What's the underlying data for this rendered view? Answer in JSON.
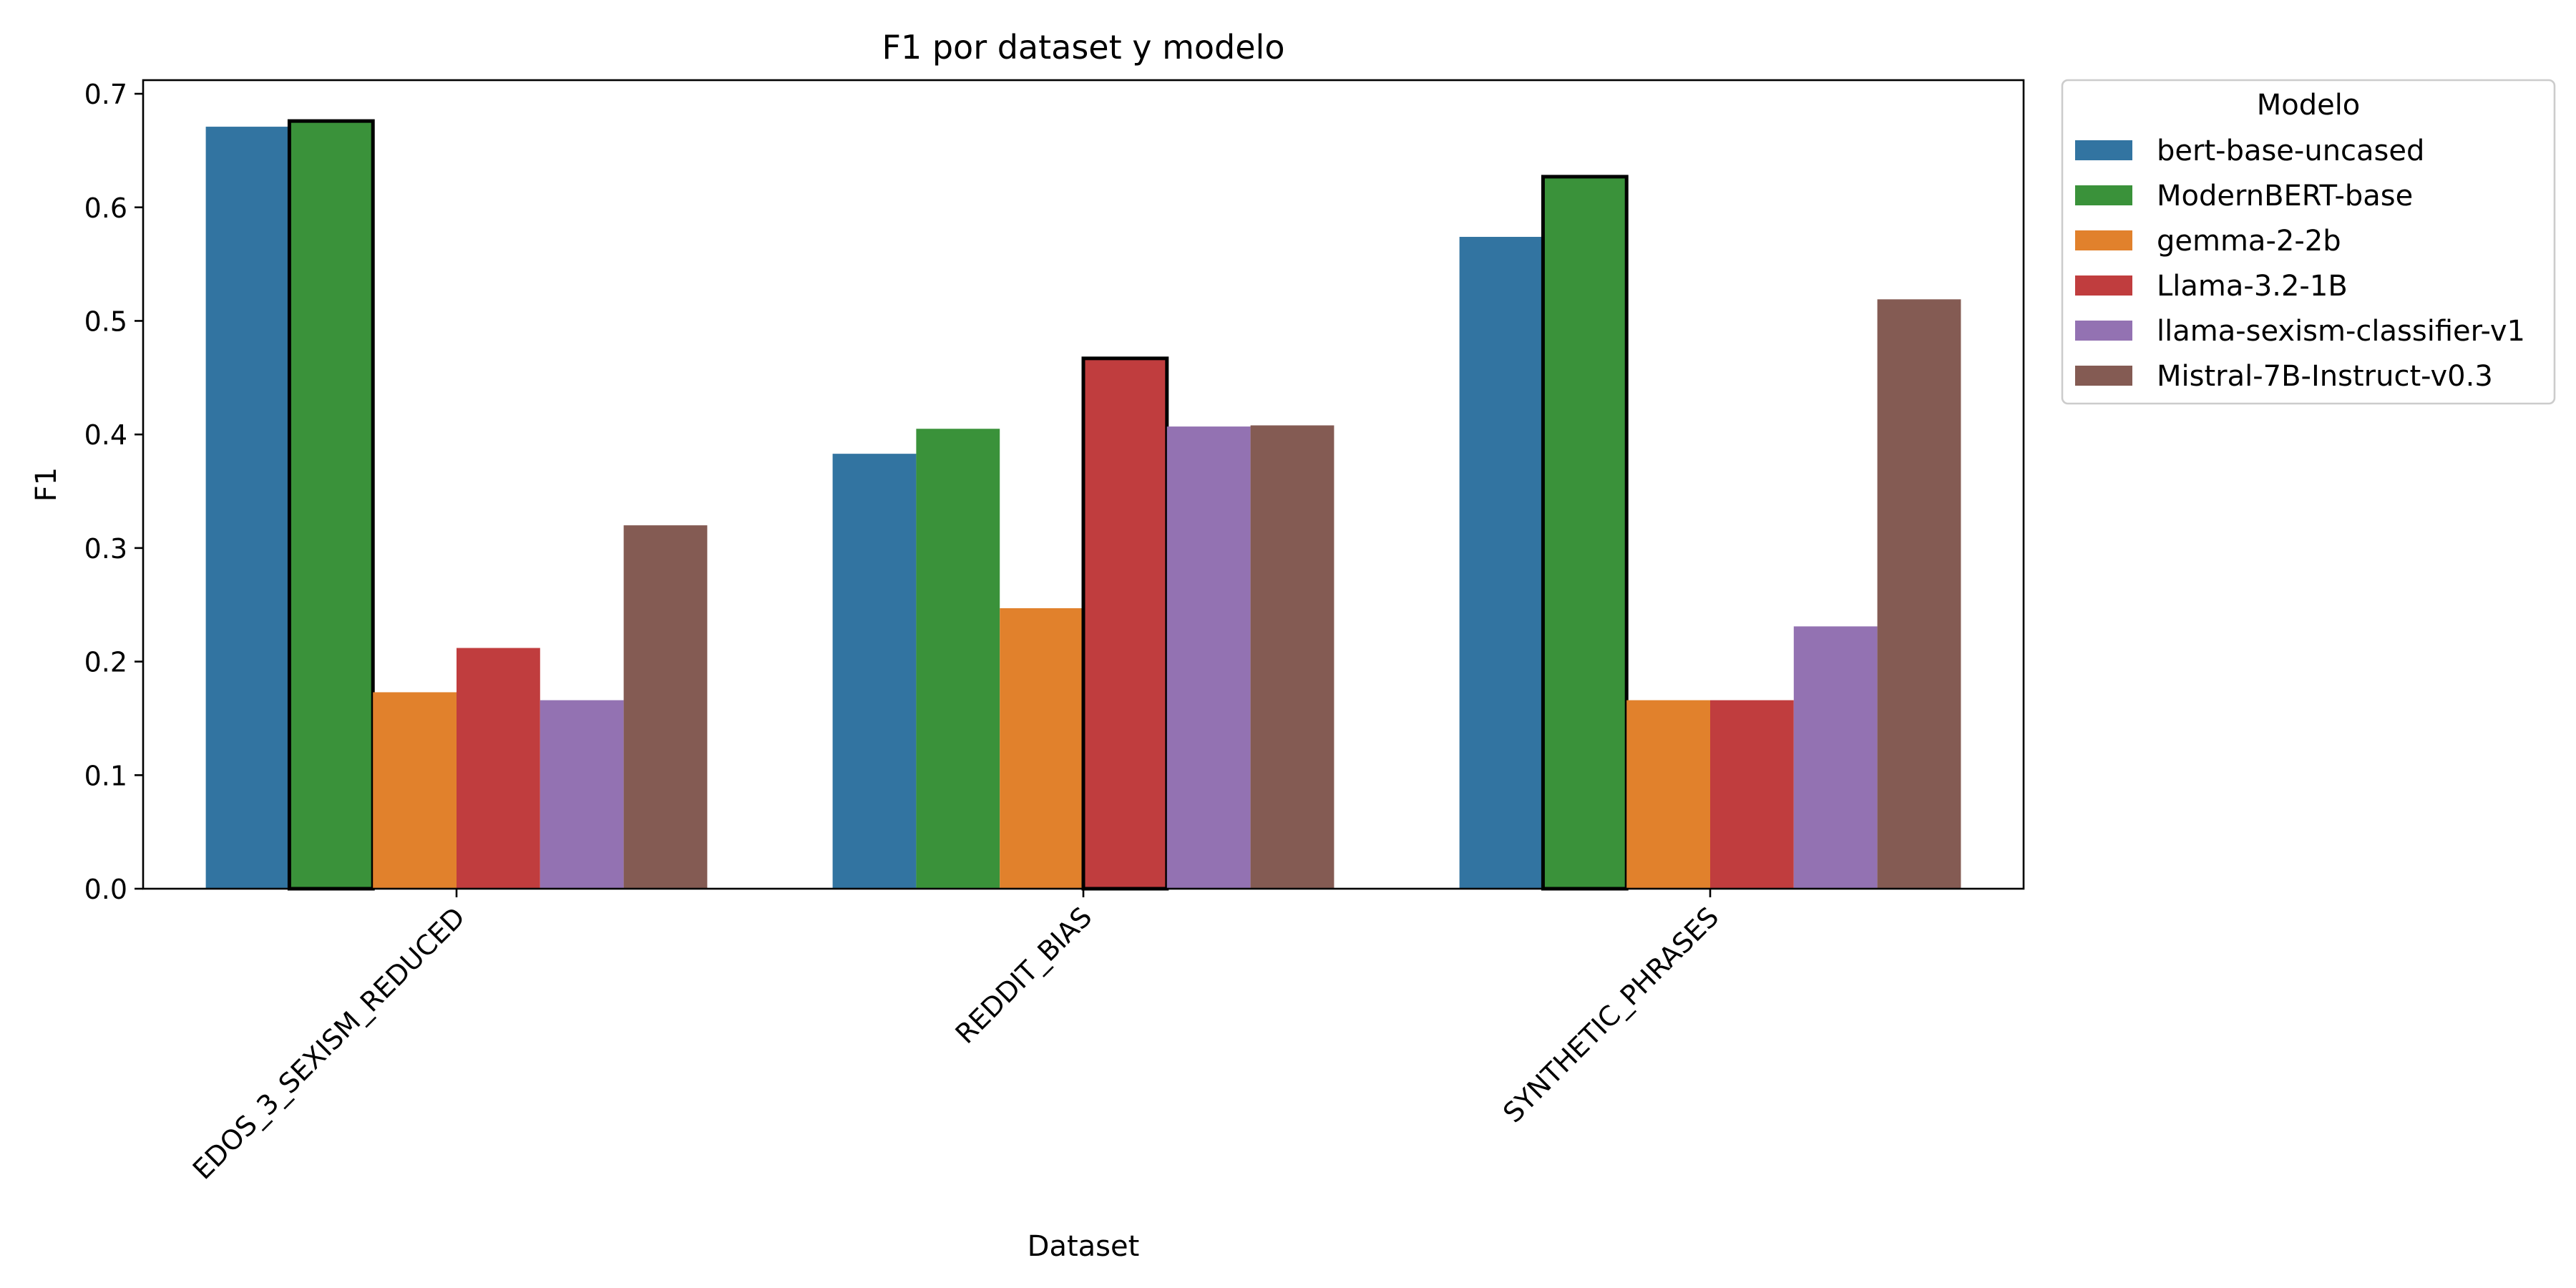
{
  "chart_data": {
    "type": "bar",
    "title": "F1 por dataset y modelo",
    "xlabel": "Dataset",
    "ylabel": "F1",
    "ylim": [
      0,
      0.712
    ],
    "yticks": [
      "0.0",
      "0.1",
      "0.2",
      "0.3",
      "0.4",
      "0.5",
      "0.6",
      "0.7"
    ],
    "categories": [
      "EDOS_3_SEXISM_REDUCED",
      "REDDIT_BIAS",
      "SYNTHETIC_PHRASES"
    ],
    "legend": {
      "title": "Modelo",
      "placement": "outside-right-top"
    },
    "grid": false,
    "highlight_note": "best model per dataset outlined in black",
    "series": [
      {
        "name": "bert-base-uncased",
        "color": "#3274a1",
        "values": [
          0.671,
          0.383,
          0.574
        ]
      },
      {
        "name": "ModernBERT-base",
        "color": "#3a923a",
        "values": [
          0.676,
          0.405,
          0.627
        ]
      },
      {
        "name": "gemma-2-2b",
        "color": "#e1812c",
        "values": [
          0.173,
          0.247,
          0.166
        ]
      },
      {
        "name": "Llama-3.2-1B",
        "color": "#c03d3e",
        "values": [
          0.212,
          0.467,
          0.166
        ]
      },
      {
        "name": "llama-sexism-classifier-v1",
        "color": "#9372b2",
        "values": [
          0.166,
          0.407,
          0.231
        ]
      },
      {
        "name": "Mistral-7B-Instruct-v0.3",
        "color": "#845b53",
        "values": [
          0.32,
          0.408,
          0.519
        ]
      }
    ],
    "highlighted": [
      {
        "category": "EDOS_3_SEXISM_REDUCED",
        "series": "ModernBERT-base"
      },
      {
        "category": "REDDIT_BIAS",
        "series": "Llama-3.2-1B"
      },
      {
        "category": "SYNTHETIC_PHRASES",
        "series": "ModernBERT-base"
      }
    ]
  }
}
